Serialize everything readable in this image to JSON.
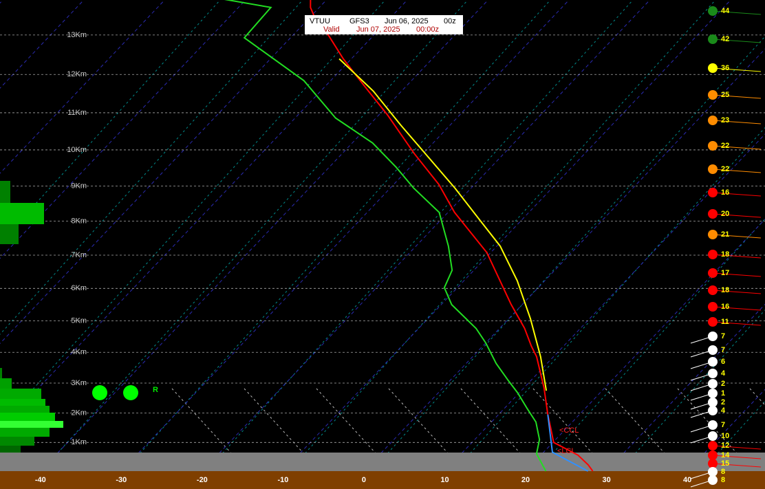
{
  "header": {
    "station": "VTUU",
    "model": "GFS3",
    "run_date": "Jun 06, 2025",
    "run_hour": "00z",
    "valid_label": "Valid",
    "valid_date": "Jun 07, 2025",
    "valid_time": "00:00z"
  },
  "chart_data": {
    "type": "skewt",
    "xlim": [
      -45,
      49.6
    ],
    "xticks": [
      -40,
      -30,
      -20,
      -10,
      0,
      10,
      20,
      30,
      40
    ],
    "ylim": [
      0,
      13.86
    ],
    "yticks": [
      {
        "value": 1,
        "label": "1Km"
      },
      {
        "value": 2,
        "label": "2Km"
      },
      {
        "value": 3,
        "label": "3Km"
      },
      {
        "value": 4,
        "label": "4Km"
      },
      {
        "value": 5,
        "label": "5Km"
      },
      {
        "value": 6,
        "label": "6Km"
      },
      {
        "value": 7,
        "label": "7Km"
      },
      {
        "value": 8,
        "label": "8Km"
      },
      {
        "value": 9,
        "label": "9Km"
      },
      {
        "value": 10,
        "label": "10Km"
      },
      {
        "value": 11,
        "label": "11Km"
      },
      {
        "value": 12,
        "label": "12Km"
      },
      {
        "value": 13,
        "label": "13Km"
      }
    ],
    "grid": true,
    "series": [
      {
        "color": "#ff0000",
        "x": [
          28.3,
          27.0,
          24.6,
          20.1,
          17.8,
          16.1,
          12.5,
          7.9,
          6.0,
          3.1,
          -1.4,
          -10.5,
          -19.2,
          -24.4,
          -31.1,
          -39.0,
          -45.6,
          -51.0,
          -55.5,
          -59.3,
          -61.1,
          -62.4
        ],
        "y": [
          0,
          0.22,
          0.56,
          1.0,
          1.55,
          1.95,
          2.84,
          3.86,
          4.2,
          4.76,
          5.51,
          7.08,
          8.25,
          9.04,
          9.9,
          10.95,
          11.75,
          12.4,
          12.98,
          13.42,
          13.68,
          13.95
        ]
      },
      {
        "color": "#22dd22",
        "x": [
          22.5,
          19.3,
          18.0,
          15.5,
          12.8,
          9.8,
          7.3,
          3.7,
          0.0,
          -2.9,
          -8.7,
          -11.6,
          -12.7,
          -16.0,
          -21.1,
          -27.1,
          -31.7,
          -37.5,
          -45.0,
          -53.3,
          -65.7,
          -66.0,
          -75.2
        ],
        "y": [
          0,
          0.61,
          1.1,
          1.7,
          2.16,
          2.68,
          3.07,
          3.64,
          4.3,
          4.76,
          5.5,
          6.02,
          6.55,
          7.27,
          8.25,
          8.94,
          9.52,
          10.19,
          10.86,
          11.84,
          12.93,
          13.68,
          13.95
        ]
      },
      {
        "color": "#ffff00",
        "x": [
          13.1,
          8.4,
          2.7,
          -3.4,
          -9.6,
          -15.4,
          -22.0,
          -29.0,
          -36.1,
          -43.5,
          -51.5
        ],
        "y": [
          2.75,
          3.86,
          5.06,
          6.23,
          7.27,
          8.06,
          8.94,
          9.81,
          10.67,
          11.57,
          12.4
        ]
      },
      {
        "color": "#3090ff",
        "x": [
          27.7,
          21.1,
          16.1
        ],
        "y": [
          0,
          0.66,
          1.95
        ]
      }
    ],
    "annotations": [
      "<CCL",
      "<LCL",
      "R"
    ],
    "winds": {
      "speeds": [
        44,
        42,
        36,
        25,
        23,
        22,
        22,
        16,
        20,
        21,
        18,
        17,
        18,
        16,
        11,
        7,
        7,
        6,
        4,
        2,
        1,
        2,
        4,
        7,
        10,
        12,
        14,
        15,
        8,
        8
      ],
      "colors": [
        "#1a8a1a",
        "#1a8a1a",
        "#ffff00",
        "#ff8c00",
        "#ff8c00",
        "#ff8c00",
        "#ff8c00",
        "#ff0000",
        "#ff0000",
        "#ff8c00",
        "#ff0000",
        "#ff0000",
        "#ff0000",
        "#ff0000",
        "#ff0000",
        "#ffffff",
        "#ffffff",
        "#ffffff",
        "#ffffff",
        "#ffffff",
        "#ffffff",
        "#ffffff",
        "#ffffff",
        "#ffffff",
        "#ffffff",
        "#ff0000",
        "#ff0000",
        "#ff0000",
        "#ffffff",
        "#ffffff"
      ]
    }
  }
}
